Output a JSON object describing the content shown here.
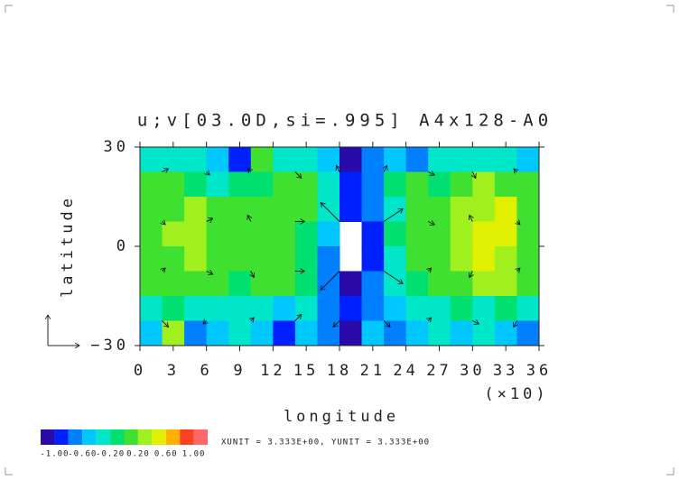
{
  "chart_data": {
    "type": "contour",
    "title": "u;v[03.0D,si=.995] A4x128-A0",
    "xlabel": "longitude",
    "ylabel": "latitude",
    "x_scale_note": "(×10)",
    "annotation": "XUNIT = 3.333E+00, YUNIT = 3.333E+00",
    "xlim": [
      0,
      36
    ],
    "ylim": [
      -30,
      30
    ],
    "xticks": [
      0,
      3,
      6,
      9,
      12,
      15,
      18,
      21,
      24,
      27,
      30,
      33,
      36
    ],
    "yticks": [
      {
        "value": -30,
        "label": "−30"
      },
      0,
      30
    ],
    "x": [
      1,
      3,
      5,
      7,
      9,
      11,
      13,
      15,
      17,
      19,
      21,
      23,
      25,
      27,
      29,
      31,
      33,
      35
    ],
    "y": [
      26.25,
      18.75,
      11.25,
      3.75,
      -3.75,
      -11.25,
      -18.75,
      -26.25
    ],
    "z": [
      [
        -0.3,
        -0.4,
        -0.3,
        -0.5,
        -0.9,
        0.1,
        -0.4,
        -0.3,
        -0.5,
        -1.1,
        -0.8,
        -0.5,
        -0.7,
        -0.4,
        -0.3,
        -0.4,
        -0.3,
        -0.5
      ],
      [
        0,
        0.1,
        -0.1,
        -0.3,
        -0.2,
        -0.1,
        0.1,
        0,
        -0.3,
        -0.9,
        -0.7,
        -0.2,
        0,
        -0.2,
        0.1,
        0.2,
        0.1,
        0
      ],
      [
        0,
        0.1,
        0.3,
        0,
        0,
        0.1,
        0,
        0,
        -0.4,
        -1.0,
        -0.8,
        -0.3,
        0.1,
        0,
        0.2,
        0.3,
        0.4,
        0.1
      ],
      [
        0,
        0.2,
        0.3,
        0,
        0.1,
        0,
        0,
        -0.1,
        -0.6,
        null,
        -0.9,
        -0.2,
        0,
        0.1,
        0.3,
        0.5,
        0.4,
        0.1
      ],
      [
        0,
        0.1,
        0.2,
        0.1,
        0,
        0,
        0,
        -0.1,
        -0.7,
        null,
        -1.0,
        -0.3,
        0,
        0.1,
        0.2,
        0.4,
        0.3,
        0
      ],
      [
        0,
        0,
        0.1,
        0,
        -0.1,
        0,
        0,
        -0.2,
        -0.8,
        -1.1,
        -0.8,
        -0.3,
        -0.1,
        0,
        0.1,
        0.2,
        0.3,
        0
      ],
      [
        -0.3,
        -0.2,
        -0.4,
        -0.3,
        -0.3,
        -0.4,
        -0.6,
        -0.4,
        -0.8,
        -1.0,
        -0.8,
        -0.5,
        -0.4,
        -0.3,
        -0.2,
        -0.3,
        -0.2,
        -0.3
      ],
      [
        -0.5,
        0.3,
        -0.8,
        -0.5,
        -0.4,
        -0.5,
        -1.0,
        -0.5,
        -0.7,
        -1.1,
        -0.6,
        -0.8,
        -0.5,
        -0.4,
        -0.5,
        -0.4,
        -0.6,
        -0.8
      ]
    ],
    "vectors": {
      "x": [
        2,
        6,
        10,
        14,
        18,
        22,
        26,
        30,
        34
      ],
      "y": [
        22.5,
        7.5,
        -7.5,
        -22.5
      ],
      "u": [
        [
          1,
          0.5,
          -0.5,
          1,
          -0.5,
          0.5,
          1,
          0.5,
          -0.5
        ],
        [
          0.5,
          1,
          -0.5,
          1.5,
          -3,
          3,
          1,
          -0.5,
          0.5
        ],
        [
          0.5,
          1,
          0.5,
          1.5,
          -3,
          3,
          0.5,
          -0.5,
          0.5
        ],
        [
          1,
          -0.5,
          0.5,
          1,
          -1,
          1,
          0.5,
          1,
          -0.5
        ]
      ],
      "v": [
        [
          0.5,
          -0.5,
          0.5,
          -1,
          1,
          1,
          -0.5,
          -1,
          0.5
        ],
        [
          -0.5,
          0.5,
          1,
          0,
          3,
          2,
          -0.5,
          1,
          -0.5
        ],
        [
          0.5,
          -0.5,
          -1,
          0,
          -3,
          -2,
          0.5,
          -1,
          0.5
        ],
        [
          -1,
          -0.5,
          0.5,
          1,
          -1,
          -1,
          0.5,
          -0.5,
          -1
        ]
      ]
    },
    "colorbar": {
      "levels": [
        -1.2,
        -1.0,
        -0.8,
        -0.6,
        -0.4,
        -0.2,
        0,
        0.2,
        0.4,
        0.6,
        0.8,
        1.0,
        1.2
      ],
      "colors": [
        "#2a0aa8",
        "#0020ff",
        "#0080ff",
        "#00c8ff",
        "#00e6c8",
        "#00e070",
        "#40e030",
        "#a0f020",
        "#e0f000",
        "#ffb000",
        "#ff4020",
        "#ff6868"
      ],
      "ticks": [
        {
          "value": -1.0,
          "label": "-1.00"
        },
        {
          "value": -0.6,
          "label": "-0.60"
        },
        {
          "value": -0.2,
          "label": "-0.20"
        },
        {
          "value": 0.2,
          "label": "0.20"
        },
        {
          "value": 0.6,
          "label": "0.60"
        },
        {
          "value": 1.0,
          "label": "1.00"
        }
      ]
    }
  }
}
